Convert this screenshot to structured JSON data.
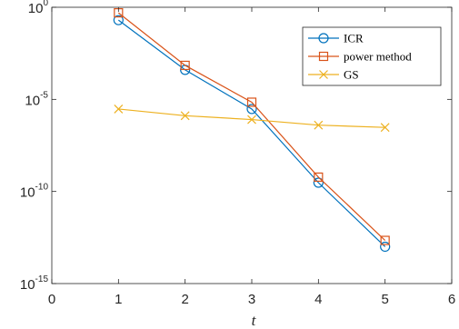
{
  "chart_data": {
    "type": "line",
    "title": "",
    "xlabel": "t",
    "ylabel": "",
    "xlim": [
      0,
      6
    ],
    "ylim": [
      1e-15,
      1
    ],
    "yscale": "log",
    "grid": false,
    "legend_position": "top-right",
    "x_ticks": [
      "0",
      "1",
      "2",
      "3",
      "4",
      "5",
      "6"
    ],
    "y_ticks": [
      {
        "base": "10",
        "exp": "-15",
        "value": 1e-15
      },
      {
        "base": "10",
        "exp": "-10",
        "value": 1e-10
      },
      {
        "base": "10",
        "exp": "-5",
        "value": 1e-05
      },
      {
        "base": "10",
        "exp": "0",
        "value": 1
      }
    ],
    "x": [
      1,
      2,
      3,
      4,
      5
    ],
    "series": [
      {
        "name": "ICR",
        "color": "#0072BD",
        "marker": "circle",
        "values": [
          0.2,
          0.0004,
          3e-06,
          3e-10,
          1e-13
        ]
      },
      {
        "name": "power method",
        "color": "#D95319",
        "marker": "square",
        "values": [
          0.5,
          0.0007,
          7e-06,
          6e-10,
          2.2e-13
        ]
      },
      {
        "name": "GS",
        "color": "#EDB120",
        "marker": "x",
        "values": [
          3e-06,
          1.3e-06,
          8e-07,
          4e-07,
          3e-07
        ]
      }
    ]
  }
}
